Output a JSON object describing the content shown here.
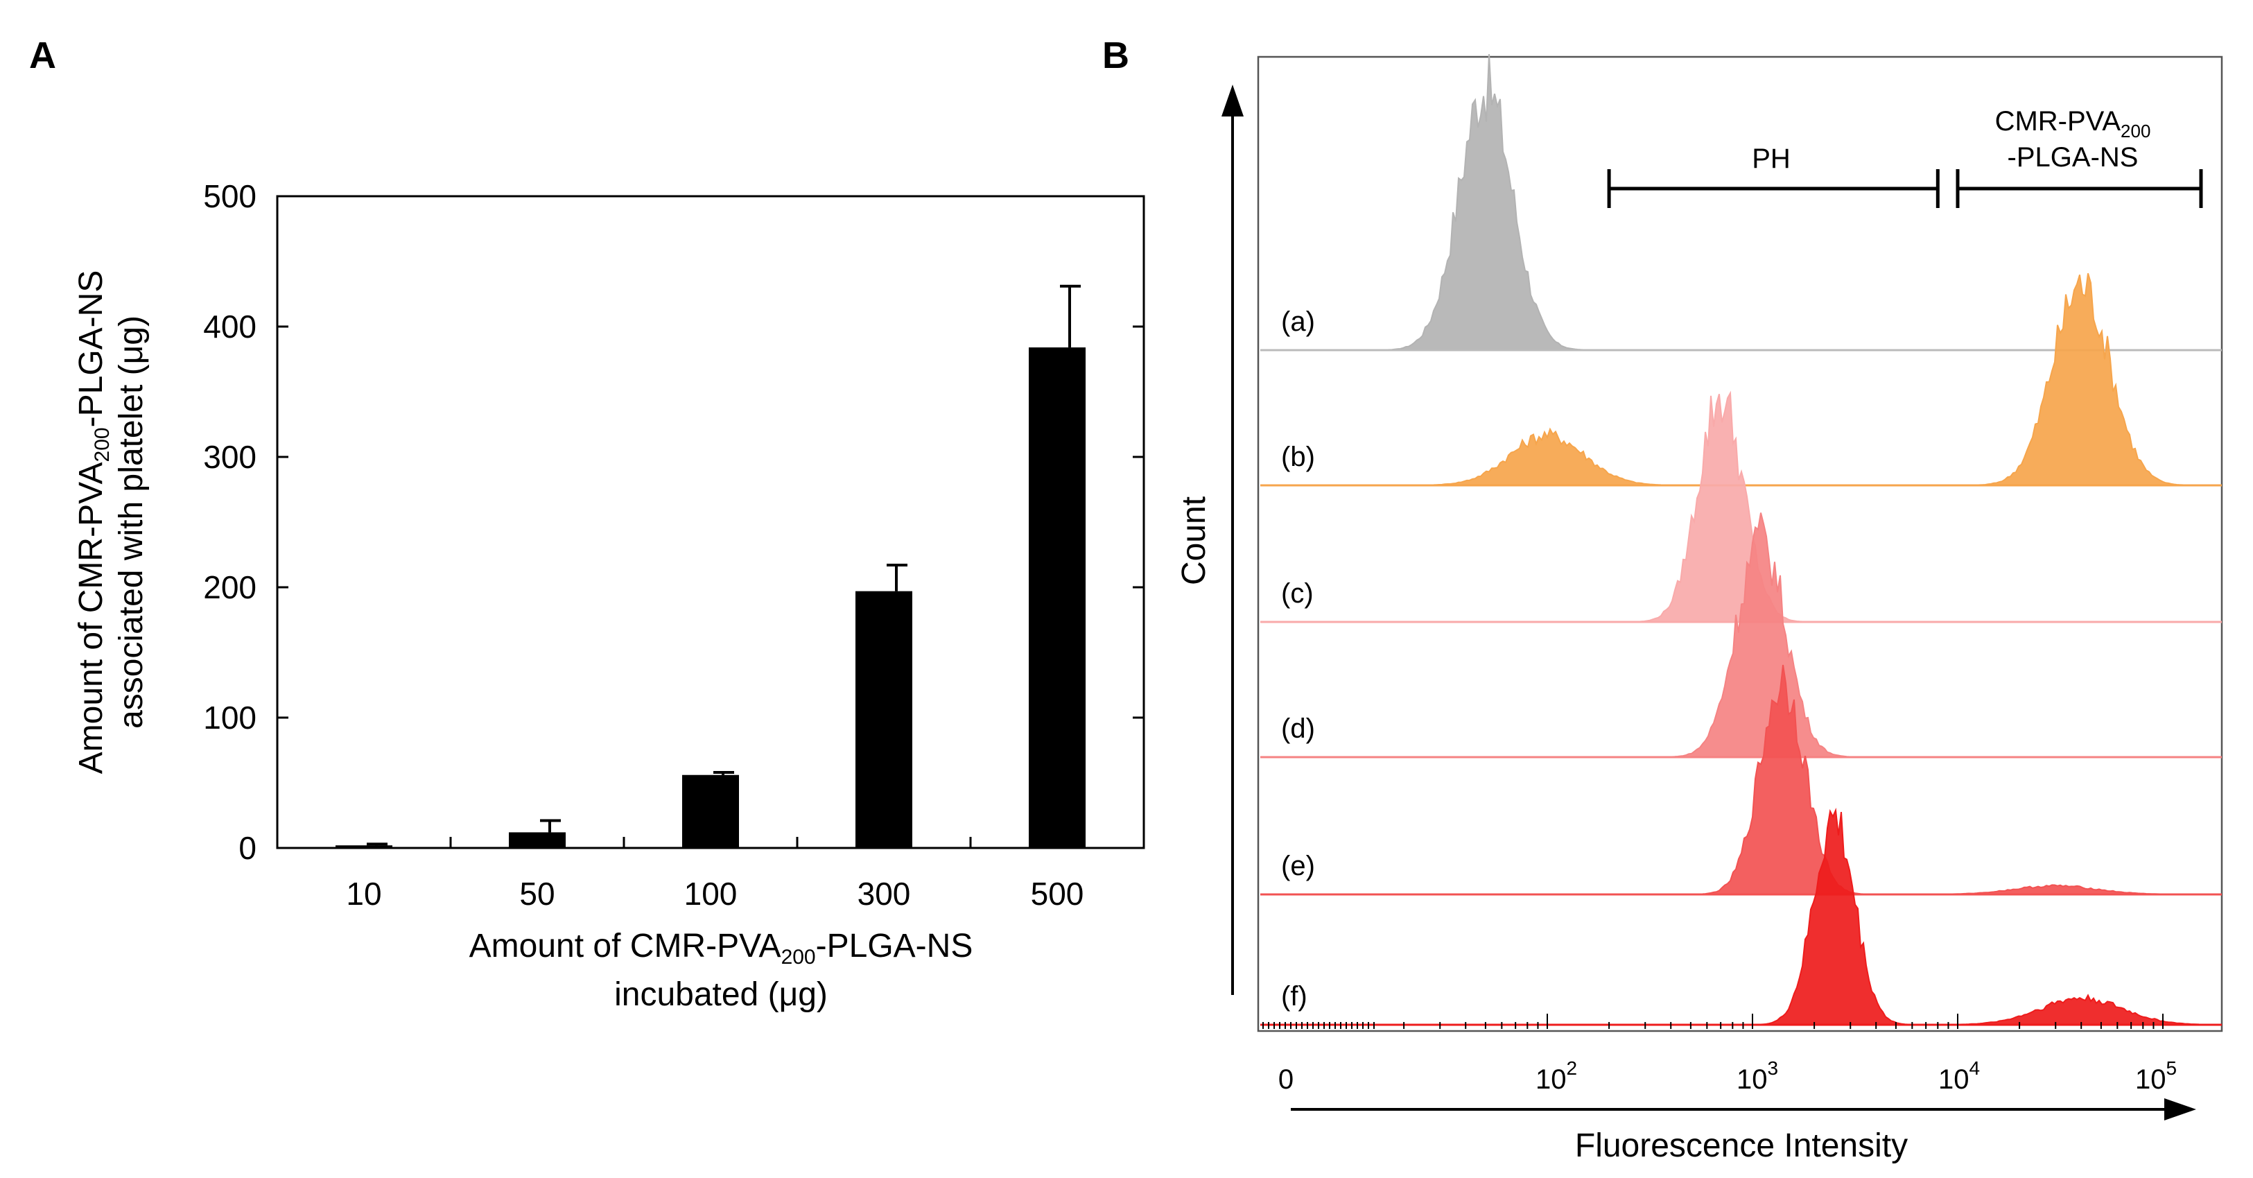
{
  "panel_a": {
    "letter": "A",
    "y_label_line1": {
      "pre": "Amount of CMR-PVA",
      "sub": "200",
      "post": "-PLGA-NS"
    },
    "y_label_line2": "associated with platelet (μg)",
    "x_label_line1": {
      "pre": "Amount of CMR-PVA",
      "sub": "200",
      "post": "-PLGA-NS"
    },
    "x_label_line2": "incubated (μg)"
  },
  "panel_b": {
    "letter": "B",
    "y_label": "Count",
    "x_label": "Fluorescence Intensity",
    "gate_ph": "PH",
    "gate_ns_line1": {
      "pre": "CMR-PVA",
      "sub": "200"
    },
    "gate_ns_line2": "-PLGA-NS",
    "x_ticks": [
      {
        "base": "0",
        "exp": ""
      },
      {
        "base": "10",
        "exp": "2"
      },
      {
        "base": "10",
        "exp": "3"
      },
      {
        "base": "10",
        "exp": "4"
      },
      {
        "base": "10",
        "exp": "5"
      }
    ],
    "tracks": [
      {
        "label": "(a)",
        "color": "#b3b3b3"
      },
      {
        "label": "(b)",
        "color": "#f6a54c"
      },
      {
        "label": "(c)",
        "color": "#f9aaaa"
      },
      {
        "label": "(d)",
        "color": "#f58383"
      },
      {
        "label": "(e)",
        "color": "#f25252"
      },
      {
        "label": "(f)",
        "color": "#ee1c1c"
      }
    ]
  },
  "chart_data": [
    {
      "type": "bar",
      "categories": [
        "10",
        "50",
        "100",
        "300",
        "500"
      ],
      "values": [
        2,
        12,
        56,
        197,
        384
      ],
      "errors": [
        1,
        9,
        2,
        20,
        47
      ],
      "ylim": [
        0,
        500
      ],
      "yticks": [
        0,
        100,
        200,
        300,
        400,
        500
      ],
      "color": "#000000"
    },
    {
      "type": "area",
      "x_scale": "log",
      "gates": [
        {
          "label": "PH",
          "range": [
            200,
            8000
          ]
        },
        {
          "label": "CMR-PVA200-PLGA-NS",
          "range": [
            10000,
            200000
          ]
        }
      ],
      "series": [
        {
          "label": "(a)",
          "peaks": [
            {
              "x": 50,
              "height": 1.0,
              "width": 0.13
            }
          ]
        },
        {
          "label": "(b)",
          "peaks": [
            {
              "x": 100,
              "height": 0.25,
              "width": 0.18
            },
            {
              "x": 40000,
              "height": 1.0,
              "width": 0.14
            }
          ]
        },
        {
          "label": "(c)",
          "peaks": [
            {
              "x": 700,
              "height": 1.0,
              "width": 0.11
            }
          ]
        },
        {
          "label": "(d)",
          "peaks": [
            {
              "x": 1100,
              "height": 1.0,
              "width": 0.12
            }
          ]
        },
        {
          "label": "(e)",
          "peaks": [
            {
              "x": 1400,
              "height": 1.0,
              "width": 0.11
            },
            {
              "x": 30000,
              "height": 0.04,
              "width": 0.2
            }
          ]
        },
        {
          "label": "(f)",
          "peaks": [
            {
              "x": 2500,
              "height": 1.0,
              "width": 0.1
            },
            {
              "x": 40000,
              "height": 0.13,
              "width": 0.2
            }
          ]
        }
      ]
    }
  ]
}
